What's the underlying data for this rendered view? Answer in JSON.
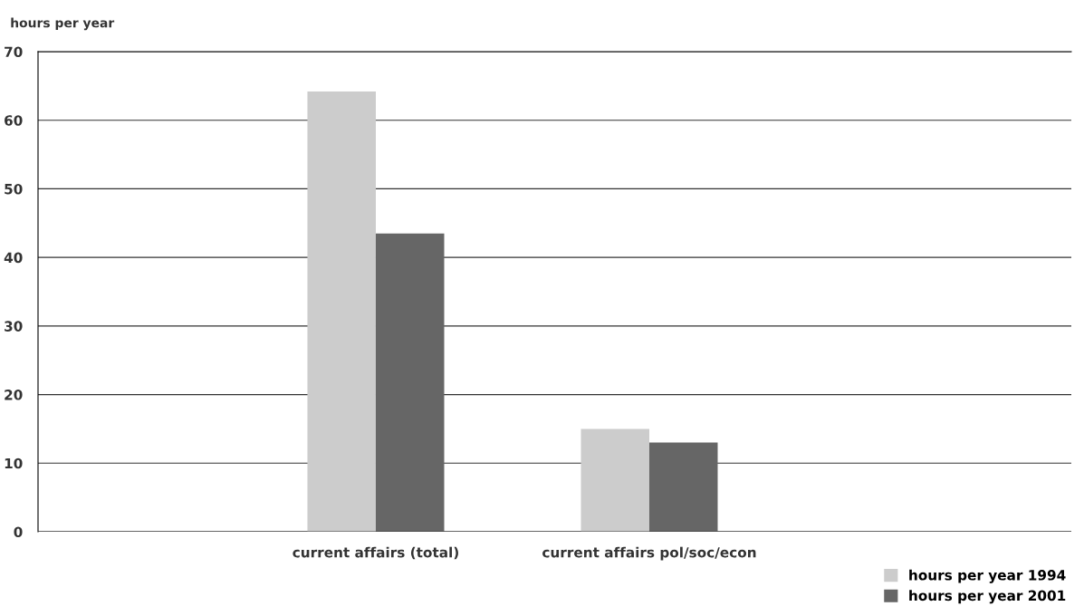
{
  "chart_data": {
    "type": "bar",
    "ylabel": "hours per year",
    "categories": [
      "current affairs (total)",
      "current affairs pol/soc/econ"
    ],
    "series": [
      {
        "name": "hours per year 1994",
        "color": "#cccccc",
        "values": [
          64.2,
          15
        ]
      },
      {
        "name": "hours per year 2001",
        "color": "#666666",
        "values": [
          43.5,
          13
        ]
      }
    ],
    "ylim": [
      0,
      70
    ],
    "yticks": [
      0,
      10,
      20,
      30,
      40,
      50,
      60,
      70
    ],
    "grid": "y",
    "legend": "bottom right"
  }
}
